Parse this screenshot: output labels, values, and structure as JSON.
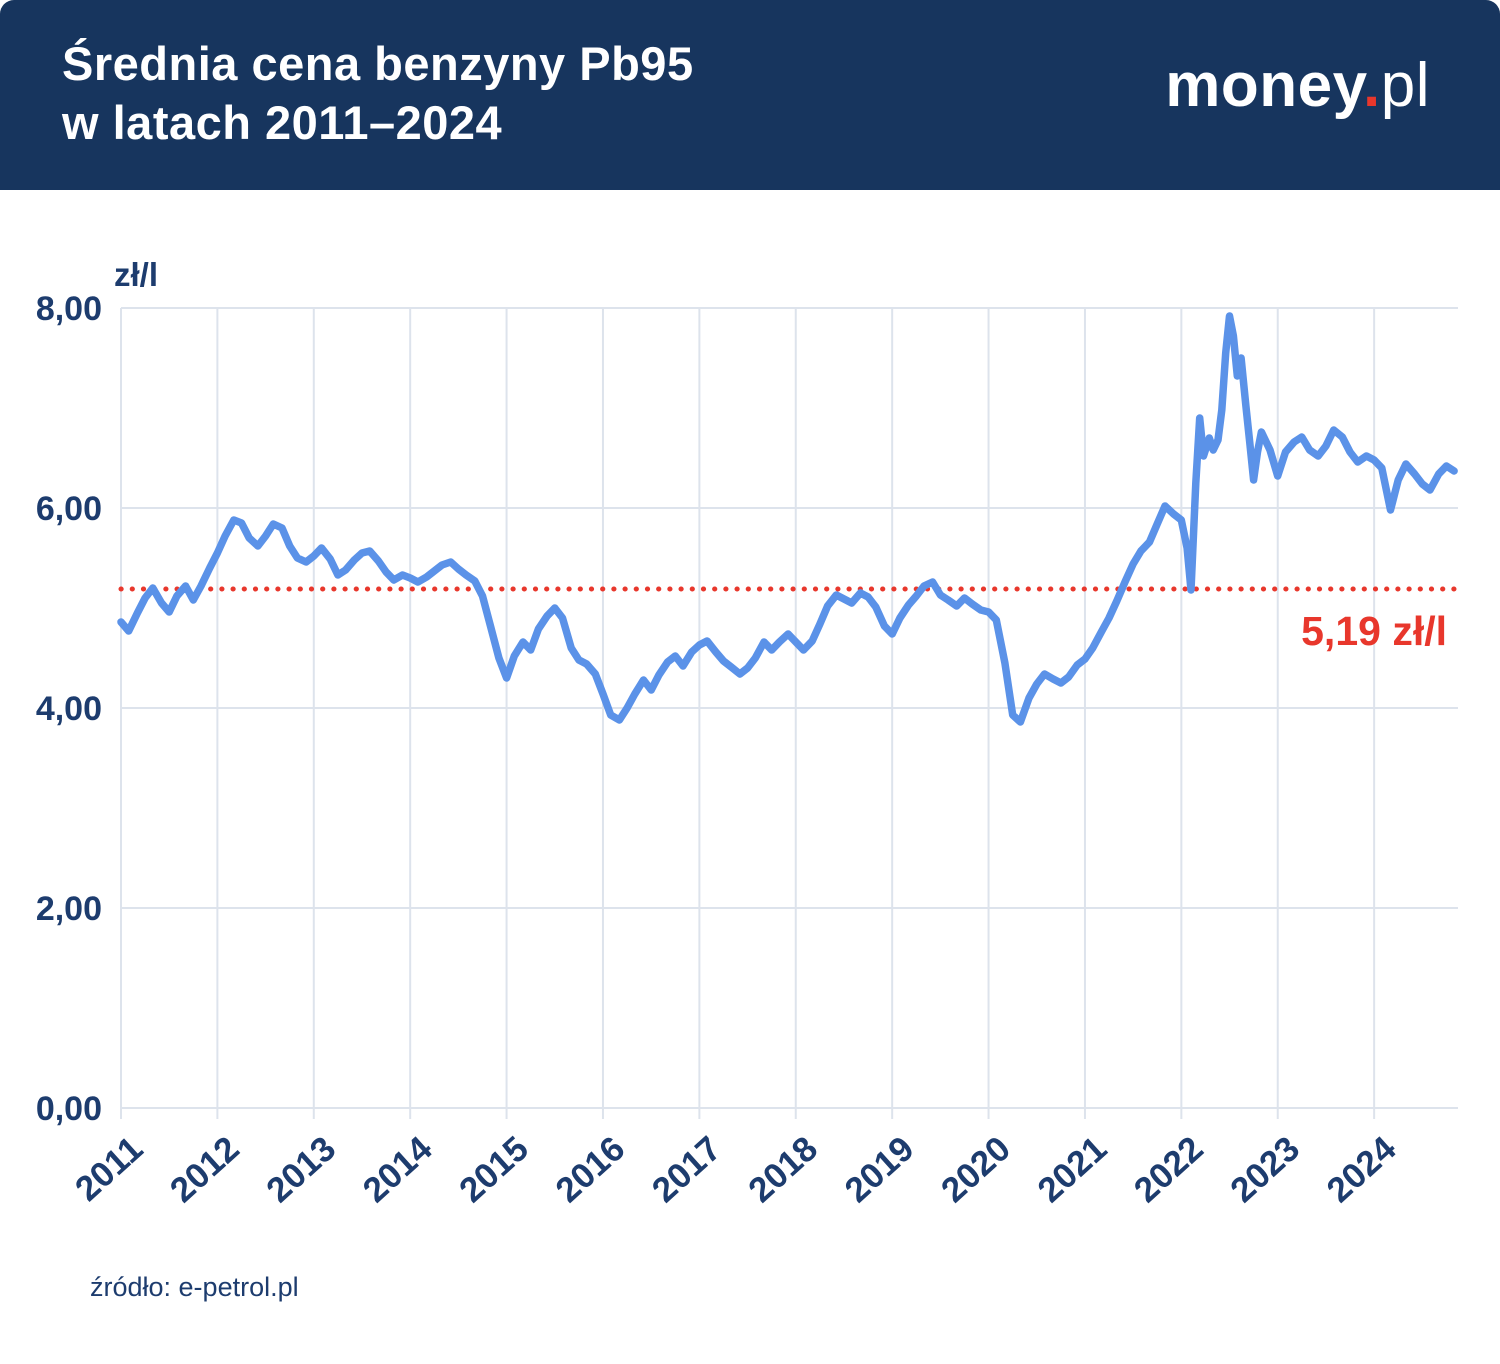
{
  "header": {
    "title_line1": "Średnia cena benzyny Pb95",
    "title_line2": "w latach 2011–2024",
    "logo": {
      "part1": "money",
      "dot": ".",
      "part2": "pl"
    }
  },
  "footer": {
    "source": "źródło: e-petrol.pl"
  },
  "colors": {
    "header_bg": "#17355e",
    "axis_text": "#1d3c6e",
    "grid": "#dde3ec",
    "line": "#5b92e8",
    "accent_red": "#e8372c"
  },
  "chart_data": {
    "type": "line",
    "title": "Średnia cena benzyny Pb95 w latach 2011–2024",
    "xlabel": "",
    "ylabel": "zł/l",
    "xlim": [
      2011,
      2024.87
    ],
    "ylim": [
      0,
      8
    ],
    "grid": true,
    "x_ticks": [
      2011,
      2012,
      2013,
      2014,
      2015,
      2016,
      2017,
      2018,
      2019,
      2020,
      2021,
      2022,
      2023,
      2024
    ],
    "y_ticks": [
      {
        "value": 0,
        "label": "0,00"
      },
      {
        "value": 2,
        "label": "2,00"
      },
      {
        "value": 4,
        "label": "4,00"
      },
      {
        "value": 6,
        "label": "6,00"
      },
      {
        "value": 8,
        "label": "8,00"
      }
    ],
    "reference_line": {
      "value": 5.19,
      "label": "5,19 zł/l",
      "color": "#e8372c"
    },
    "series": [
      {
        "name": "Pb95",
        "color": "#5b92e8",
        "points": [
          [
            2011.0,
            4.86
          ],
          [
            2011.08,
            4.77
          ],
          [
            2011.17,
            4.95
          ],
          [
            2011.25,
            5.1
          ],
          [
            2011.33,
            5.2
          ],
          [
            2011.42,
            5.05
          ],
          [
            2011.5,
            4.96
          ],
          [
            2011.58,
            5.12
          ],
          [
            2011.67,
            5.22
          ],
          [
            2011.75,
            5.08
          ],
          [
            2011.83,
            5.22
          ],
          [
            2011.92,
            5.4
          ],
          [
            2012.0,
            5.55
          ],
          [
            2012.08,
            5.72
          ],
          [
            2012.17,
            5.88
          ],
          [
            2012.25,
            5.85
          ],
          [
            2012.33,
            5.7
          ],
          [
            2012.42,
            5.62
          ],
          [
            2012.5,
            5.72
          ],
          [
            2012.58,
            5.84
          ],
          [
            2012.67,
            5.8
          ],
          [
            2012.75,
            5.62
          ],
          [
            2012.83,
            5.5
          ],
          [
            2012.92,
            5.46
          ],
          [
            2013.0,
            5.52
          ],
          [
            2013.08,
            5.6
          ],
          [
            2013.17,
            5.49
          ],
          [
            2013.25,
            5.33
          ],
          [
            2013.33,
            5.38
          ],
          [
            2013.42,
            5.48
          ],
          [
            2013.5,
            5.55
          ],
          [
            2013.58,
            5.57
          ],
          [
            2013.67,
            5.47
          ],
          [
            2013.75,
            5.36
          ],
          [
            2013.83,
            5.28
          ],
          [
            2013.92,
            5.33
          ],
          [
            2014.0,
            5.3
          ],
          [
            2014.08,
            5.26
          ],
          [
            2014.17,
            5.31
          ],
          [
            2014.25,
            5.37
          ],
          [
            2014.33,
            5.43
          ],
          [
            2014.42,
            5.46
          ],
          [
            2014.5,
            5.39
          ],
          [
            2014.58,
            5.33
          ],
          [
            2014.67,
            5.27
          ],
          [
            2014.75,
            5.12
          ],
          [
            2014.83,
            4.83
          ],
          [
            2014.92,
            4.5
          ],
          [
            2015.0,
            4.3
          ],
          [
            2015.08,
            4.52
          ],
          [
            2015.17,
            4.66
          ],
          [
            2015.25,
            4.58
          ],
          [
            2015.33,
            4.79
          ],
          [
            2015.42,
            4.92
          ],
          [
            2015.5,
            5.0
          ],
          [
            2015.58,
            4.9
          ],
          [
            2015.67,
            4.6
          ],
          [
            2015.75,
            4.48
          ],
          [
            2015.83,
            4.44
          ],
          [
            2015.92,
            4.34
          ],
          [
            2016.0,
            4.14
          ],
          [
            2016.08,
            3.93
          ],
          [
            2016.17,
            3.88
          ],
          [
            2016.25,
            4.0
          ],
          [
            2016.33,
            4.14
          ],
          [
            2016.42,
            4.28
          ],
          [
            2016.5,
            4.18
          ],
          [
            2016.58,
            4.33
          ],
          [
            2016.67,
            4.46
          ],
          [
            2016.75,
            4.52
          ],
          [
            2016.83,
            4.42
          ],
          [
            2016.92,
            4.56
          ],
          [
            2017.0,
            4.63
          ],
          [
            2017.08,
            4.67
          ],
          [
            2017.17,
            4.56
          ],
          [
            2017.25,
            4.47
          ],
          [
            2017.33,
            4.41
          ],
          [
            2017.42,
            4.34
          ],
          [
            2017.5,
            4.4
          ],
          [
            2017.58,
            4.5
          ],
          [
            2017.67,
            4.66
          ],
          [
            2017.75,
            4.58
          ],
          [
            2017.83,
            4.66
          ],
          [
            2017.92,
            4.74
          ],
          [
            2018.0,
            4.66
          ],
          [
            2018.08,
            4.58
          ],
          [
            2018.17,
            4.67
          ],
          [
            2018.25,
            4.84
          ],
          [
            2018.33,
            5.02
          ],
          [
            2018.42,
            5.13
          ],
          [
            2018.5,
            5.09
          ],
          [
            2018.58,
            5.05
          ],
          [
            2018.67,
            5.15
          ],
          [
            2018.75,
            5.11
          ],
          [
            2018.83,
            5.01
          ],
          [
            2018.92,
            4.82
          ],
          [
            2019.0,
            4.74
          ],
          [
            2019.08,
            4.9
          ],
          [
            2019.17,
            5.03
          ],
          [
            2019.25,
            5.12
          ],
          [
            2019.33,
            5.22
          ],
          [
            2019.42,
            5.26
          ],
          [
            2019.5,
            5.13
          ],
          [
            2019.58,
            5.08
          ],
          [
            2019.67,
            5.02
          ],
          [
            2019.75,
            5.1
          ],
          [
            2019.83,
            5.04
          ],
          [
            2019.92,
            4.98
          ],
          [
            2020.0,
            4.96
          ],
          [
            2020.08,
            4.88
          ],
          [
            2020.17,
            4.45
          ],
          [
            2020.25,
            3.93
          ],
          [
            2020.33,
            3.86
          ],
          [
            2020.42,
            4.1
          ],
          [
            2020.5,
            4.24
          ],
          [
            2020.58,
            4.34
          ],
          [
            2020.67,
            4.29
          ],
          [
            2020.75,
            4.25
          ],
          [
            2020.83,
            4.31
          ],
          [
            2020.92,
            4.43
          ],
          [
            2021.0,
            4.49
          ],
          [
            2021.08,
            4.6
          ],
          [
            2021.17,
            4.76
          ],
          [
            2021.25,
            4.9
          ],
          [
            2021.33,
            5.07
          ],
          [
            2021.42,
            5.27
          ],
          [
            2021.5,
            5.44
          ],
          [
            2021.58,
            5.57
          ],
          [
            2021.67,
            5.66
          ],
          [
            2021.75,
            5.84
          ],
          [
            2021.83,
            6.02
          ],
          [
            2021.92,
            5.94
          ],
          [
            2022.0,
            5.88
          ],
          [
            2022.06,
            5.6
          ],
          [
            2022.1,
            5.18
          ],
          [
            2022.15,
            6.25
          ],
          [
            2022.19,
            6.9
          ],
          [
            2022.23,
            6.52
          ],
          [
            2022.29,
            6.7
          ],
          [
            2022.33,
            6.58
          ],
          [
            2022.38,
            6.68
          ],
          [
            2022.42,
            6.98
          ],
          [
            2022.46,
            7.55
          ],
          [
            2022.5,
            7.92
          ],
          [
            2022.54,
            7.72
          ],
          [
            2022.58,
            7.32
          ],
          [
            2022.62,
            7.5
          ],
          [
            2022.67,
            7.02
          ],
          [
            2022.71,
            6.65
          ],
          [
            2022.75,
            6.28
          ],
          [
            2022.79,
            6.56
          ],
          [
            2022.83,
            6.76
          ],
          [
            2022.92,
            6.58
          ],
          [
            2023.0,
            6.32
          ],
          [
            2023.08,
            6.56
          ],
          [
            2023.17,
            6.66
          ],
          [
            2023.25,
            6.71
          ],
          [
            2023.33,
            6.58
          ],
          [
            2023.42,
            6.52
          ],
          [
            2023.5,
            6.62
          ],
          [
            2023.58,
            6.78
          ],
          [
            2023.67,
            6.71
          ],
          [
            2023.75,
            6.56
          ],
          [
            2023.83,
            6.46
          ],
          [
            2023.92,
            6.52
          ],
          [
            2024.0,
            6.48
          ],
          [
            2024.08,
            6.4
          ],
          [
            2024.17,
            5.98
          ],
          [
            2024.25,
            6.28
          ],
          [
            2024.33,
            6.44
          ],
          [
            2024.42,
            6.34
          ],
          [
            2024.5,
            6.24
          ],
          [
            2024.58,
            6.18
          ],
          [
            2024.67,
            6.34
          ],
          [
            2024.75,
            6.42
          ],
          [
            2024.83,
            6.37
          ]
        ]
      }
    ]
  }
}
